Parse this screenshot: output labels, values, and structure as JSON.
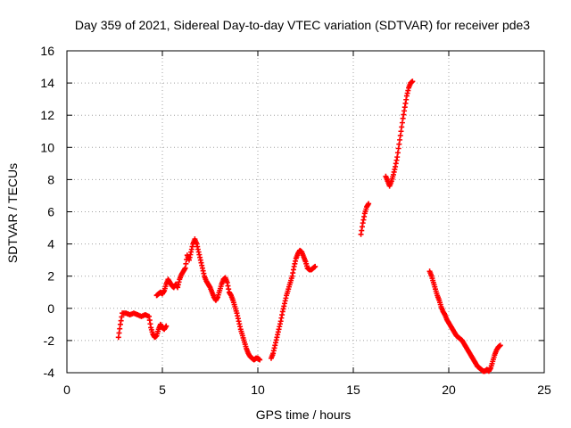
{
  "chart_data": {
    "type": "scatter",
    "title": "Day 359 of 2021, Sidereal Day-to-day VTEC variation (SDTVAR) for receiver pde3",
    "xlabel": "GPS time / hours",
    "ylabel": "SDTVAR / TECUs",
    "xlim": [
      0,
      25
    ],
    "ylim": [
      -4,
      16
    ],
    "xticks": [
      0,
      5,
      10,
      15,
      20,
      25
    ],
    "yticks": [
      -4,
      -2,
      0,
      2,
      4,
      6,
      8,
      10,
      12,
      14,
      16
    ],
    "grid": true,
    "marker": "+",
    "color": "#ff0000",
    "segments": [
      [
        [
          2.7,
          -1.8
        ],
        [
          2.8,
          -1.0
        ],
        [
          2.9,
          -0.3
        ],
        [
          3.1,
          -0.3
        ],
        [
          3.3,
          -0.4
        ],
        [
          3.5,
          -0.3
        ],
        [
          3.7,
          -0.4
        ],
        [
          3.9,
          -0.5
        ],
        [
          4.1,
          -0.4
        ],
        [
          4.3,
          -0.5
        ],
        [
          4.4,
          -1.2
        ],
        [
          4.5,
          -1.6
        ],
        [
          4.6,
          -1.8
        ],
        [
          4.7,
          -1.7
        ],
        [
          4.8,
          -1.3
        ],
        [
          4.9,
          -1.0
        ],
        [
          5.0,
          -1.2
        ],
        [
          5.1,
          -1.3
        ],
        [
          5.2,
          -1.1
        ]
      ],
      [
        [
          4.7,
          0.8
        ],
        [
          4.8,
          0.9
        ],
        [
          4.9,
          1.0
        ],
        [
          5.0,
          0.9
        ],
        [
          5.1,
          1.1
        ],
        [
          5.2,
          1.5
        ],
        [
          5.3,
          1.8
        ],
        [
          5.4,
          1.6
        ],
        [
          5.5,
          1.4
        ],
        [
          5.6,
          1.3
        ],
        [
          5.7,
          1.5
        ],
        [
          5.8,
          1.3
        ],
        [
          5.9,
          1.8
        ],
        [
          6.0,
          2.1
        ],
        [
          6.1,
          2.3
        ],
        [
          6.2,
          2.5
        ],
        [
          6.3,
          3.3
        ],
        [
          6.4,
          3.0
        ],
        [
          6.5,
          3.5
        ],
        [
          6.6,
          4.0
        ],
        [
          6.7,
          4.3
        ],
        [
          6.8,
          4.0
        ],
        [
          6.9,
          3.5
        ],
        [
          7.0,
          3.0
        ],
        [
          7.1,
          2.5
        ],
        [
          7.2,
          2.0
        ],
        [
          7.3,
          1.7
        ],
        [
          7.4,
          1.5
        ],
        [
          7.5,
          1.3
        ],
        [
          7.6,
          1.0
        ],
        [
          7.7,
          0.7
        ],
        [
          7.8,
          0.5
        ],
        [
          7.9,
          0.7
        ],
        [
          8.0,
          1.1
        ],
        [
          8.1,
          1.5
        ],
        [
          8.2,
          1.8
        ],
        [
          8.3,
          1.9
        ],
        [
          8.4,
          1.6
        ],
        [
          8.5,
          1.0
        ],
        [
          8.6,
          0.8
        ],
        [
          8.7,
          0.5
        ],
        [
          8.8,
          0.1
        ],
        [
          8.9,
          -0.3
        ],
        [
          9.0,
          -0.8
        ],
        [
          9.1,
          -1.3
        ],
        [
          9.2,
          -1.7
        ],
        [
          9.3,
          -2.1
        ],
        [
          9.4,
          -2.5
        ],
        [
          9.5,
          -2.8
        ],
        [
          9.6,
          -3.0
        ],
        [
          9.7,
          -3.1
        ],
        [
          9.8,
          -3.2
        ],
        [
          9.9,
          -3.1
        ],
        [
          10.0,
          -3.1
        ],
        [
          10.1,
          -3.2
        ]
      ],
      [
        [
          10.7,
          -3.1
        ],
        [
          10.8,
          -2.8
        ],
        [
          10.9,
          -2.3
        ],
        [
          11.0,
          -1.8
        ],
        [
          11.1,
          -1.3
        ],
        [
          11.2,
          -0.8
        ],
        [
          11.3,
          -0.2
        ],
        [
          11.4,
          0.3
        ],
        [
          11.5,
          0.8
        ],
        [
          11.6,
          1.2
        ],
        [
          11.7,
          1.6
        ],
        [
          11.8,
          2.0
        ],
        [
          11.9,
          2.6
        ],
        [
          12.0,
          3.1
        ],
        [
          12.1,
          3.4
        ],
        [
          12.2,
          3.6
        ],
        [
          12.3,
          3.5
        ],
        [
          12.4,
          3.2
        ],
        [
          12.5,
          2.9
        ],
        [
          12.6,
          2.5
        ],
        [
          12.7,
          2.4
        ],
        [
          12.8,
          2.4
        ],
        [
          12.9,
          2.5
        ],
        [
          13.0,
          2.6
        ]
      ],
      [
        [
          15.4,
          4.6
        ],
        [
          15.5,
          5.3
        ],
        [
          15.6,
          5.9
        ],
        [
          15.7,
          6.3
        ],
        [
          15.8,
          6.5
        ]
      ],
      [
        [
          16.7,
          8.2
        ],
        [
          16.8,
          7.9
        ],
        [
          16.9,
          7.6
        ],
        [
          17.0,
          7.9
        ],
        [
          17.1,
          8.3
        ],
        [
          17.2,
          8.8
        ],
        [
          17.3,
          9.4
        ],
        [
          17.4,
          10.2
        ],
        [
          17.5,
          11.0
        ],
        [
          17.6,
          11.8
        ],
        [
          17.7,
          12.5
        ],
        [
          17.8,
          13.2
        ],
        [
          17.9,
          13.7
        ],
        [
          18.0,
          14.0
        ],
        [
          18.1,
          14.1
        ]
      ],
      [
        [
          19.0,
          2.3
        ],
        [
          19.1,
          2.0
        ],
        [
          19.2,
          1.6
        ],
        [
          19.3,
          1.2
        ],
        [
          19.4,
          0.8
        ],
        [
          19.5,
          0.5
        ],
        [
          19.6,
          0.1
        ],
        [
          19.7,
          -0.2
        ],
        [
          19.8,
          -0.4
        ],
        [
          19.9,
          -0.7
        ],
        [
          20.0,
          -0.9
        ],
        [
          20.1,
          -1.1
        ],
        [
          20.2,
          -1.3
        ],
        [
          20.3,
          -1.5
        ],
        [
          20.4,
          -1.7
        ],
        [
          20.5,
          -1.8
        ],
        [
          20.6,
          -1.9
        ],
        [
          20.7,
          -2.0
        ],
        [
          20.8,
          -2.2
        ],
        [
          20.9,
          -2.4
        ],
        [
          21.0,
          -2.6
        ],
        [
          21.1,
          -2.8
        ],
        [
          21.2,
          -3.0
        ],
        [
          21.3,
          -3.2
        ],
        [
          21.4,
          -3.4
        ],
        [
          21.5,
          -3.6
        ],
        [
          21.6,
          -3.7
        ],
        [
          21.7,
          -3.8
        ],
        [
          21.8,
          -3.9
        ],
        [
          21.9,
          -3.9
        ],
        [
          22.0,
          -3.8
        ],
        [
          22.1,
          -3.9
        ],
        [
          22.2,
          -3.7
        ],
        [
          22.3,
          -3.3
        ],
        [
          22.4,
          -2.9
        ],
        [
          22.5,
          -2.6
        ],
        [
          22.6,
          -2.4
        ],
        [
          22.7,
          -2.3
        ]
      ]
    ]
  }
}
